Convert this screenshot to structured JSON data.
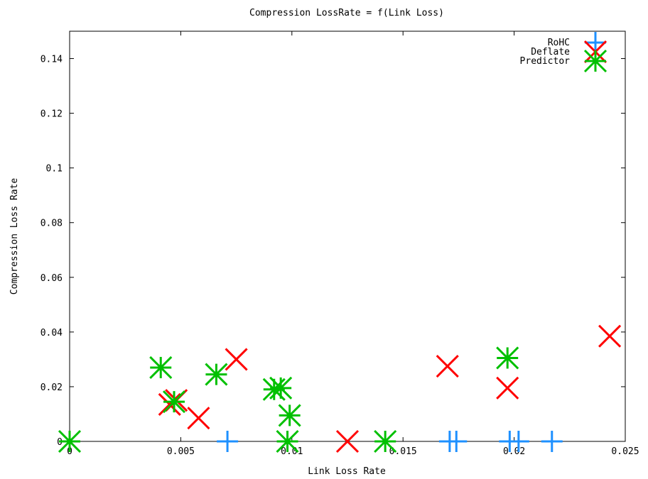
{
  "chart_data": {
    "type": "scatter",
    "title": "Compression LossRate = f(Link Loss)",
    "xlabel": "Link Loss Rate",
    "ylabel": "Compression Loss Rate",
    "xlim": [
      0,
      0.025
    ],
    "ylim": [
      0,
      0.15
    ],
    "x_ticks": [
      {
        "v": 0,
        "label": "0"
      },
      {
        "v": 0.005,
        "label": "0.005"
      },
      {
        "v": 0.01,
        "label": "0.01"
      },
      {
        "v": 0.015,
        "label": "0.015"
      },
      {
        "v": 0.02,
        "label": "0.02"
      },
      {
        "v": 0.025,
        "label": "0.025"
      }
    ],
    "y_ticks": [
      {
        "v": 0,
        "label": "0"
      },
      {
        "v": 0.02,
        "label": "0.02"
      },
      {
        "v": 0.04,
        "label": "0.04"
      },
      {
        "v": 0.06,
        "label": "0.06"
      },
      {
        "v": 0.08,
        "label": "0.08"
      },
      {
        "v": 0.1,
        "label": "0.1"
      },
      {
        "v": 0.12,
        "label": "0.12"
      },
      {
        "v": 0.14,
        "label": "0.14"
      }
    ],
    "grid": false,
    "legend_position": "top-right",
    "series": [
      {
        "name": "RoHC",
        "marker": "plus",
        "color": "#1e90ff",
        "points": [
          [
            0.0071,
            0
          ],
          [
            0.0171,
            0
          ],
          [
            0.0174,
            0
          ],
          [
            0.0198,
            0
          ],
          [
            0.0202,
            0
          ],
          [
            0.0217,
            0
          ]
        ]
      },
      {
        "name": "Deflate",
        "marker": "cross",
        "color": "#ff0000",
        "points": [
          [
            0.0045,
            0.0135
          ],
          [
            0.0048,
            0.015
          ],
          [
            0.0058,
            0.0085
          ],
          [
            0.0075,
            0.03
          ],
          [
            0.0125,
            0
          ],
          [
            0.017,
            0.0275
          ],
          [
            0.0197,
            0.0195
          ],
          [
            0.0243,
            0.0385
          ]
        ]
      },
      {
        "name": "Predictor",
        "marker": "star",
        "color": "#00c000",
        "points": [
          [
            0,
            0
          ],
          [
            0.0041,
            0.027
          ],
          [
            0.0047,
            0.0145
          ],
          [
            0.0066,
            0.0245
          ],
          [
            0.0092,
            0.019
          ],
          [
            0.0095,
            0.0195
          ],
          [
            0.0098,
            0
          ],
          [
            0.0099,
            0.0095
          ],
          [
            0.0142,
            0
          ],
          [
            0.0197,
            0.0305
          ]
        ]
      }
    ]
  }
}
